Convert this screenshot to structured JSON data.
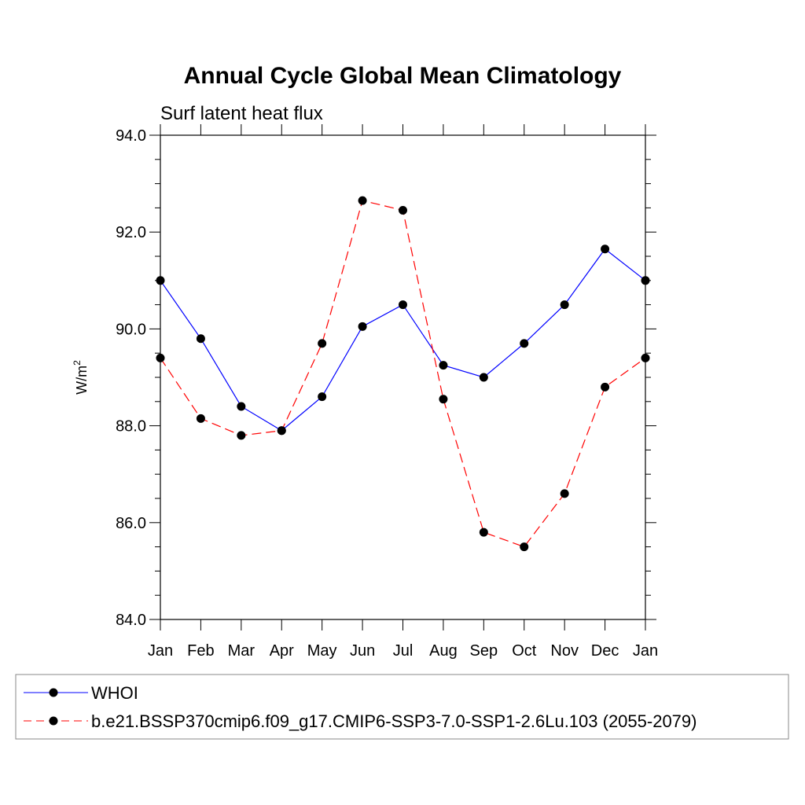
{
  "chart_data": {
    "type": "line",
    "title": "Annual Cycle Global Mean Climatology",
    "subtitle": "Surf latent heat flux",
    "ylabel": "W/m",
    "ylabel_sup": "2",
    "xlabel": "",
    "ylim": [
      84.0,
      94.0
    ],
    "yticks": [
      84.0,
      86.0,
      88.0,
      90.0,
      92.0,
      94.0
    ],
    "ytick_labels": [
      "84.0",
      "86.0",
      "88.0",
      "90.0",
      "92.0",
      "94.0"
    ],
    "categories": [
      "Jan",
      "Feb",
      "Mar",
      "Apr",
      "May",
      "Jun",
      "Jul",
      "Aug",
      "Sep",
      "Oct",
      "Nov",
      "Dec",
      "Jan"
    ],
    "series": [
      {
        "name": "WHOI",
        "color": "#0000ff",
        "dashed": false,
        "values": [
          91.0,
          89.8,
          88.4,
          87.9,
          88.6,
          90.05,
          90.5,
          89.25,
          89.0,
          89.7,
          90.5,
          91.65,
          91.0
        ]
      },
      {
        "name": "b.e21.BSSP370cmip6.f09_g17.CMIP6-SSP3-7.0-SSP1-2.6Lu.103 (2055-2079)",
        "color": "#ff0000",
        "dashed": true,
        "values": [
          89.4,
          88.15,
          87.8,
          87.9,
          89.7,
          92.65,
          92.45,
          88.55,
          85.8,
          85.5,
          86.6,
          88.8,
          89.4
        ]
      }
    ]
  }
}
